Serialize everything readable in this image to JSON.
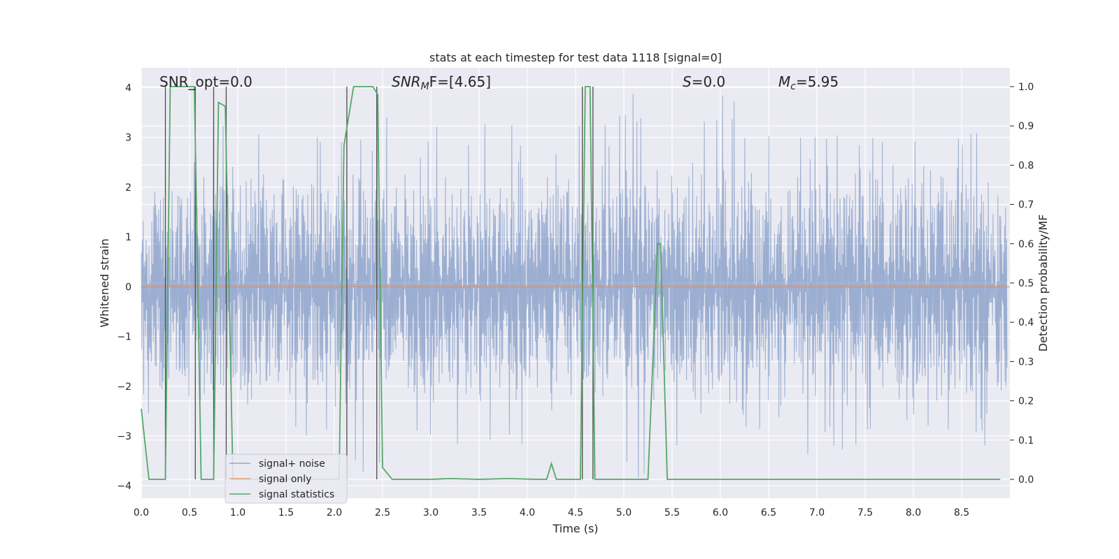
{
  "chart_data": {
    "type": "line",
    "title": "stats at each timestep for test data 1118 [signal=0]",
    "xlabel": "Time (s)",
    "ylabel": "Whitened strain",
    "y2label": "Detection probability/MF",
    "xlim": [
      0.0,
      9.0
    ],
    "ylim": [
      -4.25,
      4.4
    ],
    "y2lim": [
      -0.048,
      1.048
    ],
    "x_ticks": [
      "0.0",
      "0.5",
      "1.0",
      "1.5",
      "2.0",
      "2.5",
      "3.0",
      "3.5",
      "4.0",
      "4.5",
      "5.0",
      "5.5",
      "6.0",
      "6.5",
      "7.0",
      "7.5",
      "8.0",
      "8.5"
    ],
    "y_ticks": [
      "4",
      "3",
      "2",
      "1",
      "0",
      "−1",
      "−2",
      "−3",
      "−4"
    ],
    "y2_ticks": [
      "1.0",
      "0.9",
      "0.8",
      "0.7",
      "0.6",
      "0.5",
      "0.4",
      "0.3",
      "0.2",
      "0.1",
      "0.0"
    ],
    "grid": true,
    "legend_position": "lower-left",
    "annotations": {
      "snr_opt": "SNR_opt=0.0",
      "snr_mf_label": "SNR",
      "snr_mf_sub": "M",
      "snr_mf_rest": "F=[4.65]",
      "s_label": "S",
      "s_rest": "=0.0",
      "mc_label": "M",
      "mc_sub": "c",
      "mc_rest": "=5.95"
    },
    "series": [
      {
        "name": "signal+ noise",
        "color": "#4c72b0",
        "description_values": "dense noise between approx -4 and +4",
        "envelope_peaks": [
          [
            0.05,
            2.8,
            -2.3
          ],
          [
            0.25,
            2.9,
            -1.8
          ],
          [
            0.6,
            2.5,
            -2.0
          ],
          [
            0.78,
            3.7,
            -2.3
          ],
          [
            0.95,
            2.5,
            -2.5
          ],
          [
            1.25,
            2.5,
            -3.1
          ],
          [
            2.0,
            2.1,
            -3.2
          ],
          [
            2.4,
            3.0,
            -3.9
          ],
          [
            3.2,
            3.4,
            -2.9
          ],
          [
            3.7,
            3.1,
            -3.4
          ],
          [
            4.0,
            3.3,
            -2.6
          ],
          [
            4.25,
            2.7,
            -3.9
          ],
          [
            4.45,
            2.5,
            -3.3
          ],
          [
            5.25,
            3.9,
            -1.8
          ],
          [
            5.45,
            2.9,
            -3.5
          ],
          [
            5.85,
            3.6,
            -2.9
          ],
          [
            6.0,
            3.9,
            -2.5
          ],
          [
            6.4,
            3.4,
            -2.9
          ],
          [
            6.8,
            3.5,
            -2.8
          ],
          [
            7.3,
            2.7,
            -3.3
          ],
          [
            7.6,
            3.3,
            -3.2
          ],
          [
            8.1,
            3.0,
            -2.5
          ],
          [
            8.5,
            3.2,
            -3.4
          ],
          [
            8.9,
            3.3,
            -2.8
          ]
        ]
      },
      {
        "name": "signal only",
        "color": "#dd8452",
        "x": [
          0.0,
          9.0
        ],
        "y": [
          0.0,
          0.0
        ]
      },
      {
        "name": "signal statistics",
        "color": "#55a868",
        "axis": "right",
        "x": [
          0.0,
          0.08,
          0.2,
          0.25,
          0.3,
          0.4,
          0.55,
          0.62,
          0.75,
          0.8,
          0.87,
          0.95,
          1.0,
          2.05,
          2.1,
          2.2,
          2.4,
          2.45,
          2.5,
          2.6,
          3.0,
          3.2,
          3.5,
          3.8,
          4.1,
          4.2,
          4.25,
          4.3,
          4.4,
          4.55,
          4.6,
          4.65,
          4.7,
          4.8,
          5.0,
          5.25,
          5.35,
          5.38,
          5.45,
          5.6,
          6.5,
          8.9
        ],
        "y": [
          0.18,
          0.0,
          0.0,
          0.0,
          1.0,
          1.0,
          1.0,
          0.0,
          0.0,
          0.96,
          0.95,
          0.0,
          0.0,
          0.0,
          0.85,
          1.0,
          1.0,
          0.98,
          0.03,
          0.0,
          0.0,
          0.002,
          0.0,
          0.002,
          0.0,
          0.0,
          0.04,
          0.0,
          0.0,
          0.0,
          1.0,
          1.0,
          0.0,
          0.0,
          0.0,
          0.0,
          0.6,
          0.6,
          0.0,
          0.0,
          0.0,
          0.0
        ]
      },
      {
        "name": "markers",
        "color": "#4d4d4d",
        "x": [
          0.25,
          0.56,
          0.75,
          0.88,
          2.13,
          2.44,
          4.57,
          4.68
        ]
      }
    ]
  },
  "legend": {
    "items": [
      "signal+ noise",
      "signal only",
      "signal statistics"
    ]
  }
}
